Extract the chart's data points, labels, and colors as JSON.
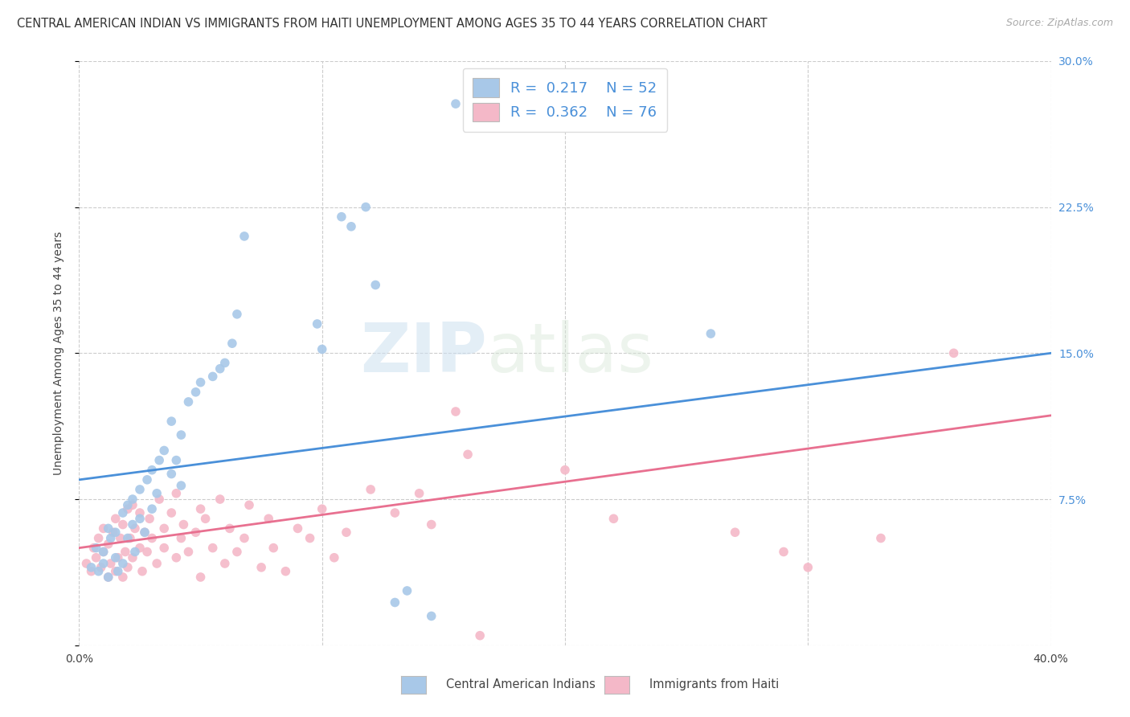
{
  "title": "CENTRAL AMERICAN INDIAN VS IMMIGRANTS FROM HAITI UNEMPLOYMENT AMONG AGES 35 TO 44 YEARS CORRELATION CHART",
  "source": "Source: ZipAtlas.com",
  "ylabel": "Unemployment Among Ages 35 to 44 years",
  "x_min": 0.0,
  "x_max": 0.4,
  "y_min": 0.0,
  "y_max": 0.3,
  "x_ticks": [
    0.0,
    0.1,
    0.2,
    0.3,
    0.4
  ],
  "y_ticks": [
    0.0,
    0.075,
    0.15,
    0.225,
    0.3
  ],
  "y_tick_labels_right": [
    "",
    "7.5%",
    "15.0%",
    "22.5%",
    "30.0%"
  ],
  "blue_color": "#a8c8e8",
  "pink_color": "#f4b8c8",
  "blue_line_color": "#4a90d9",
  "pink_line_color": "#e87090",
  "legend_blue_R": "0.217",
  "legend_blue_N": "52",
  "legend_pink_R": "0.362",
  "legend_pink_N": "76",
  "legend_label_blue": "Central American Indians",
  "legend_label_pink": "Immigrants from Haiti",
  "blue_scatter_x": [
    0.005,
    0.007,
    0.008,
    0.01,
    0.01,
    0.012,
    0.012,
    0.013,
    0.015,
    0.015,
    0.016,
    0.018,
    0.018,
    0.02,
    0.02,
    0.022,
    0.022,
    0.023,
    0.025,
    0.025,
    0.027,
    0.028,
    0.03,
    0.03,
    0.032,
    0.033,
    0.035,
    0.038,
    0.038,
    0.04,
    0.042,
    0.042,
    0.045,
    0.048,
    0.05,
    0.055,
    0.058,
    0.06,
    0.063,
    0.065,
    0.068,
    0.098,
    0.1,
    0.108,
    0.112,
    0.118,
    0.122,
    0.13,
    0.135,
    0.145,
    0.155,
    0.26
  ],
  "blue_scatter_y": [
    0.04,
    0.05,
    0.038,
    0.042,
    0.048,
    0.035,
    0.06,
    0.055,
    0.045,
    0.058,
    0.038,
    0.068,
    0.042,
    0.055,
    0.072,
    0.062,
    0.075,
    0.048,
    0.065,
    0.08,
    0.058,
    0.085,
    0.07,
    0.09,
    0.078,
    0.095,
    0.1,
    0.088,
    0.115,
    0.095,
    0.082,
    0.108,
    0.125,
    0.13,
    0.135,
    0.138,
    0.142,
    0.145,
    0.155,
    0.17,
    0.21,
    0.165,
    0.152,
    0.22,
    0.215,
    0.225,
    0.185,
    0.022,
    0.028,
    0.015,
    0.278,
    0.16
  ],
  "pink_scatter_x": [
    0.003,
    0.005,
    0.006,
    0.007,
    0.008,
    0.009,
    0.01,
    0.01,
    0.012,
    0.012,
    0.013,
    0.014,
    0.015,
    0.015,
    0.016,
    0.017,
    0.018,
    0.018,
    0.019,
    0.02,
    0.02,
    0.021,
    0.022,
    0.022,
    0.023,
    0.025,
    0.025,
    0.026,
    0.027,
    0.028,
    0.029,
    0.03,
    0.032,
    0.033,
    0.035,
    0.035,
    0.038,
    0.04,
    0.04,
    0.042,
    0.043,
    0.045,
    0.048,
    0.05,
    0.05,
    0.052,
    0.055,
    0.058,
    0.06,
    0.062,
    0.065,
    0.068,
    0.07,
    0.075,
    0.078,
    0.08,
    0.085,
    0.09,
    0.095,
    0.1,
    0.105,
    0.11,
    0.12,
    0.13,
    0.14,
    0.145,
    0.155,
    0.16,
    0.165,
    0.2,
    0.22,
    0.27,
    0.29,
    0.3,
    0.33,
    0.36
  ],
  "pink_scatter_y": [
    0.042,
    0.038,
    0.05,
    0.045,
    0.055,
    0.04,
    0.048,
    0.06,
    0.035,
    0.052,
    0.042,
    0.058,
    0.038,
    0.065,
    0.045,
    0.055,
    0.035,
    0.062,
    0.048,
    0.04,
    0.07,
    0.055,
    0.045,
    0.072,
    0.06,
    0.05,
    0.068,
    0.038,
    0.058,
    0.048,
    0.065,
    0.055,
    0.042,
    0.075,
    0.05,
    0.06,
    0.068,
    0.045,
    0.078,
    0.055,
    0.062,
    0.048,
    0.058,
    0.07,
    0.035,
    0.065,
    0.05,
    0.075,
    0.042,
    0.06,
    0.048,
    0.055,
    0.072,
    0.04,
    0.065,
    0.05,
    0.038,
    0.06,
    0.055,
    0.07,
    0.045,
    0.058,
    0.08,
    0.068,
    0.078,
    0.062,
    0.12,
    0.098,
    0.005,
    0.09,
    0.065,
    0.058,
    0.048,
    0.04,
    0.055,
    0.15
  ],
  "blue_line_y_start": 0.085,
  "blue_line_y_end": 0.15,
  "pink_line_y_start": 0.05,
  "pink_line_y_end": 0.118,
  "watermark_zip": "ZIP",
  "watermark_atlas": "atlas",
  "background_color": "#ffffff",
  "grid_color": "#cccccc",
  "title_fontsize": 10.5,
  "axis_label_fontsize": 10,
  "tick_fontsize": 10,
  "legend_text_color": "#4a90d9",
  "bottom_legend_color": "#444444"
}
